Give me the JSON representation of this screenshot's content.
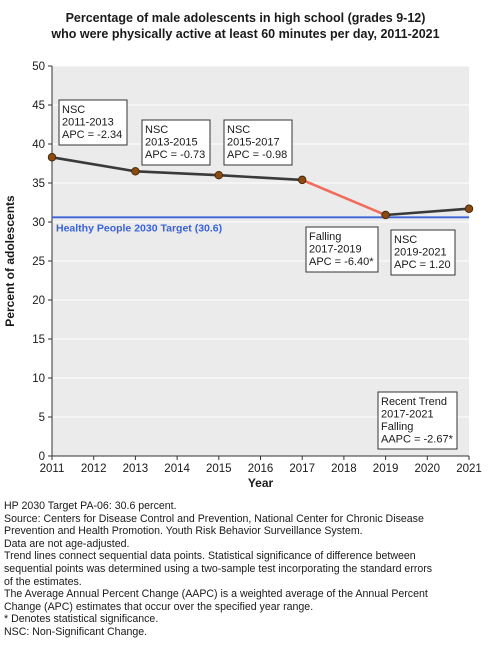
{
  "chart_data": {
    "type": "line",
    "title": [
      "Percentage of male adolescents in high school (grades 9-12)",
      "who were physically active at least 60 minutes per day, 2011-2021"
    ],
    "xlabel": "Year",
    "ylabel": "Percent of adolescents",
    "xlim": [
      2011,
      2021
    ],
    "ylim": [
      0,
      50
    ],
    "x_ticks": [
      "2011",
      "2012",
      "2013",
      "2014",
      "2015",
      "2016",
      "2017",
      "2018",
      "2019",
      "2020",
      "2021"
    ],
    "y_ticks": [
      "0",
      "5",
      "10",
      "15",
      "20",
      "25",
      "30",
      "35",
      "40",
      "45",
      "50"
    ],
    "grid": "horizontal",
    "points": [
      {
        "x": 2011,
        "y": 38.3
      },
      {
        "x": 2013,
        "y": 36.5
      },
      {
        "x": 2015,
        "y": 36.0
      },
      {
        "x": 2017,
        "y": 35.4
      },
      {
        "x": 2019,
        "y": 30.9
      },
      {
        "x": 2021,
        "y": 31.7
      }
    ],
    "segments": [
      {
        "from": 2011,
        "to": 2017,
        "color": "#3a3a3a"
      },
      {
        "from": 2017,
        "to": 2019,
        "color": "#f26b5b"
      },
      {
        "from": 2019,
        "to": 2021,
        "color": "#3a3a3a"
      }
    ],
    "target": {
      "value": 30.6,
      "label": "Healthy People 2030 Target (30.6)",
      "color": "#3b63d9"
    },
    "annotations": [
      {
        "lines": [
          "NSC",
          "2011-2013",
          "APC = -2.34"
        ]
      },
      {
        "lines": [
          "NSC",
          "2013-2015",
          "APC = -0.73"
        ]
      },
      {
        "lines": [
          "NSC",
          "2015-2017",
          "APC = -0.98"
        ]
      },
      {
        "lines": [
          "Falling",
          "2017-2019",
          "APC = -6.40*"
        ]
      },
      {
        "lines": [
          "NSC",
          "2019-2021",
          "APC =  1.20"
        ]
      },
      {
        "lines": [
          "Recent Trend",
          "2017-2021",
          "Falling",
          "AAPC = -2.67*"
        ]
      }
    ],
    "colors": {
      "point": "#8b4a0f",
      "point_stroke": "#3a2000",
      "line": "#3a3a3a",
      "falling": "#f26b5b",
      "grid": "#ffffff",
      "plot_bg": "#ebebeb"
    }
  },
  "notes": [
    "HP 2030 Target PA-06: 30.6 percent.",
    "Source: Centers for Disease Control and Prevention, National Center for Chronic Disease",
    "Prevention and Health Promotion. Youth Risk Behavior Surveillance System.",
    "Data are not age-adjusted.",
    "Trend lines connect sequential data points. Statistical significance of difference between",
    "sequential points was determined using a two-sample test incorporating the standard errors",
    "of the estimates.",
    "The Average Annual Percent Change (AAPC) is a weighted average of the Annual Percent",
    "Change (APC) estimates that occur over the specified year range.",
    "* Denotes statistical significance.",
    "NSC: Non-Significant Change."
  ]
}
